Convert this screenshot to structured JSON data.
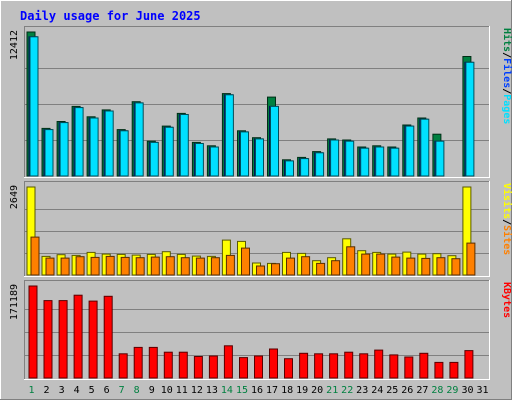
{
  "title": "Daily usage for June 2025",
  "chart_data": {
    "type": "bar",
    "title": "Daily usage for June 2025",
    "categories": [
      "1",
      "2",
      "3",
      "4",
      "5",
      "6",
      "7",
      "8",
      "9",
      "10",
      "11",
      "12",
      "13",
      "14",
      "15",
      "16",
      "17",
      "18",
      "19",
      "20",
      "21",
      "22",
      "23",
      "24",
      "25",
      "26",
      "27",
      "28",
      "29",
      "30",
      "31"
    ],
    "weekend_days": [
      "1",
      "7",
      "8",
      "14",
      "15",
      "21",
      "22",
      "28",
      "29"
    ],
    "weekend_color": "#008040",
    "panels": [
      {
        "id": "hits-files-pages",
        "ymax": 12412,
        "ymax_label": "12412",
        "legend": [
          {
            "text": "Pages",
            "color": "#00e0ff"
          },
          {
            "text": "/",
            "color": "#000000"
          },
          {
            "text": "Files",
            "color": "#0040ff"
          },
          {
            "text": "/",
            "color": "#000000"
          },
          {
            "text": "Hits",
            "color": "#008040"
          }
        ],
        "series": [
          {
            "name": "Hits",
            "color": "#008040",
            "values": [
              12412,
              4100,
              4700,
              6000,
              5100,
              5700,
              4000,
              6400,
              3000,
              4300,
              5400,
              2900,
              2600,
              7100,
              3900,
              3300,
              6800,
              1400,
              1600,
              2100,
              3200,
              3100,
              2500,
              2600,
              2500,
              4400,
              5000,
              3600,
              0,
              10300,
              0
            ]
          },
          {
            "name": "Files",
            "color": "#0040ff",
            "values": [
              12000,
              4000,
              4600,
              5900,
              5000,
              5600,
              3900,
              6300,
              2900,
              4200,
              5300,
              2800,
              2500,
              7000,
              3800,
              3200,
              6000,
              1300,
              1500,
              2000,
              3100,
              3000,
              2400,
              2500,
              2400,
              4300,
              4900,
              3000,
              0,
              9800,
              0
            ]
          },
          {
            "name": "Pages",
            "color": "#00e0ff",
            "values": [
              12000,
              4000,
              4600,
              5900,
              5000,
              5600,
              3900,
              6300,
              2900,
              4200,
              5300,
              2800,
              2500,
              7000,
              3800,
              3200,
              6000,
              1300,
              1500,
              2000,
              3100,
              3000,
              2400,
              2500,
              2400,
              4300,
              4900,
              3000,
              0,
              9800,
              0
            ]
          }
        ]
      },
      {
        "id": "visits-sites",
        "ymax": 2649,
        "ymax_label": "2649",
        "legend": [
          {
            "text": "Sites",
            "color": "#ff8000"
          },
          {
            "text": "/",
            "color": "#000000"
          },
          {
            "text": "Visits",
            "color": "#ffff00"
          }
        ],
        "series": [
          {
            "name": "Visits",
            "color": "#ffff00",
            "values": [
              2649,
              560,
              610,
              590,
              680,
              630,
              620,
              600,
              620,
              700,
              620,
              570,
              560,
              1050,
              1010,
              360,
              350,
              680,
              650,
              430,
              520,
              1090,
              730,
              680,
              630,
              690,
              630,
              640,
              580,
              2649,
              0
            ]
          },
          {
            "name": "Sites",
            "color": "#ff8000",
            "values": [
              1140,
              510,
              510,
              550,
              530,
              560,
              530,
              520,
              540,
              550,
              520,
              510,
              520,
              590,
              810,
              270,
              340,
              510,
              550,
              350,
              430,
              850,
              630,
              630,
              540,
              510,
              500,
              520,
              490,
              960,
              0
            ]
          }
        ]
      },
      {
        "id": "kbytes",
        "ymax": 171189,
        "ymax_label": "171189",
        "legend": [
          {
            "text": "KBytes",
            "color": "#ff0000"
          }
        ],
        "series": [
          {
            "name": "KBytes",
            "color": "#ff0000",
            "values": [
              171189,
              144000,
              144000,
              154000,
              143000,
              152000,
              45000,
              57000,
              57000,
              48000,
              48000,
              40000,
              41000,
              60000,
              38000,
              41000,
              54000,
              36000,
              46000,
              45000,
              45000,
              48000,
              45000,
              52000,
              43000,
              39000,
              46000,
              29000,
              29000,
              51000,
              0
            ]
          }
        ]
      }
    ]
  }
}
